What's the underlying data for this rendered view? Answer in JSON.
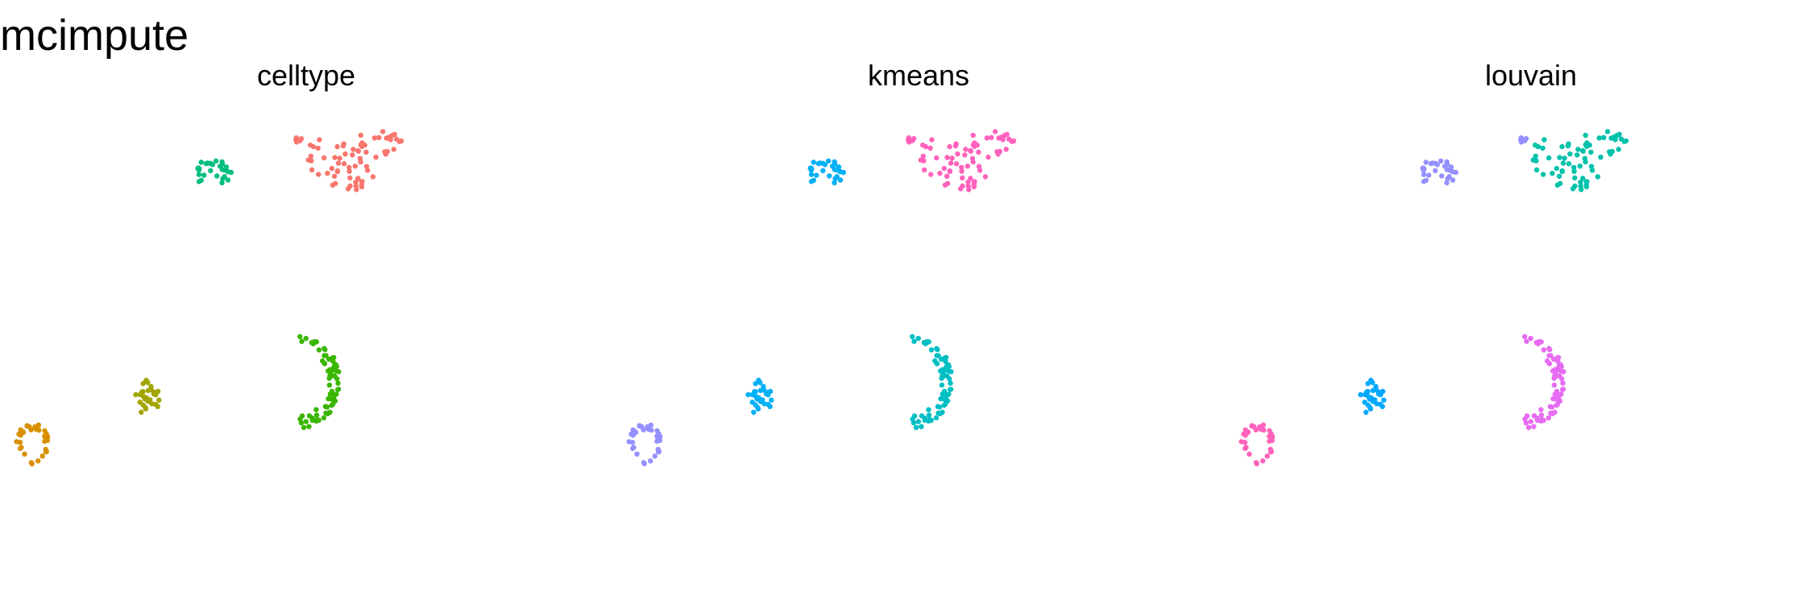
{
  "title": "mcimpute",
  "colors": {
    "c1": "#F8766D",
    "c2": "#DE8C00",
    "c3": "#B79F00",
    "c4": "#7CAE00",
    "c5": "#00BA38",
    "c6": "#00C08B",
    "c7": "#00BFC4",
    "c8": "#00B4F0",
    "c9": "#619CFF",
    "c10": "#C77CFF",
    "c11": "#F564E3",
    "c12": "#FF64B0",
    "c13": "#9E91F0"
  },
  "chart_data": [
    {
      "type": "scatter",
      "title": "celltype",
      "legend": "none",
      "grid": false,
      "xlim": [
        0,
        760
      ],
      "ylim": [
        0,
        686
      ],
      "clusters": [
        {
          "cx": 372,
          "cy": 110,
          "rx": 6,
          "ry": 4,
          "n": 5,
          "shape": "blob",
          "color": "#F8766D"
        },
        {
          "cx": 435,
          "cy": 135,
          "rx": 65,
          "ry": 45,
          "n": 70,
          "shape": "stain",
          "color": "#F8766D"
        },
        {
          "cx": 265,
          "cy": 150,
          "rx": 30,
          "ry": 16,
          "n": 30,
          "shape": "blob",
          "color": "#00BF7D"
        },
        {
          "cx": 390,
          "cy": 410,
          "rx": 30,
          "ry": 55,
          "n": 70,
          "shape": "crescent",
          "color": "#39B600"
        },
        {
          "cx": 183,
          "cy": 430,
          "rx": 15,
          "ry": 22,
          "n": 30,
          "shape": "blob",
          "color": "#A3A500"
        },
        {
          "cx": 40,
          "cy": 485,
          "rx": 20,
          "ry": 22,
          "n": 35,
          "shape": "ring",
          "color": "#D89000"
        }
      ]
    },
    {
      "type": "scatter",
      "title": "kmeans",
      "legend": "none",
      "grid": false,
      "xlim": [
        0,
        760
      ],
      "ylim": [
        0,
        686
      ],
      "clusters": [
        {
          "cx": 372,
          "cy": 110,
          "rx": 6,
          "ry": 4,
          "n": 5,
          "shape": "blob",
          "color": "#FF62BC"
        },
        {
          "cx": 435,
          "cy": 135,
          "rx": 65,
          "ry": 45,
          "n": 70,
          "shape": "stain",
          "color": "#FF62BC"
        },
        {
          "cx": 265,
          "cy": 150,
          "rx": 30,
          "ry": 16,
          "n": 30,
          "shape": "blob",
          "color": "#00B0F6"
        },
        {
          "cx": 390,
          "cy": 410,
          "rx": 30,
          "ry": 55,
          "n": 70,
          "shape": "crescent",
          "color": "#00BFC4"
        },
        {
          "cx": 183,
          "cy": 430,
          "rx": 15,
          "ry": 22,
          "n": 30,
          "shape": "blob",
          "color": "#00B0F6"
        },
        {
          "cx": 40,
          "cy": 485,
          "rx": 20,
          "ry": 22,
          "n": 35,
          "shape": "ring",
          "color": "#9590FF"
        }
      ]
    },
    {
      "type": "scatter",
      "title": "louvain",
      "legend": "none",
      "grid": false,
      "xlim": [
        0,
        760
      ],
      "ylim": [
        0,
        686
      ],
      "clusters": [
        {
          "cx": 372,
          "cy": 110,
          "rx": 6,
          "ry": 4,
          "n": 5,
          "shape": "blob",
          "color": "#9590FF"
        },
        {
          "cx": 435,
          "cy": 135,
          "rx": 65,
          "ry": 45,
          "n": 70,
          "shape": "stain",
          "color": "#00C1AA"
        },
        {
          "cx": 265,
          "cy": 150,
          "rx": 30,
          "ry": 16,
          "n": 30,
          "shape": "blob",
          "color": "#9590FF"
        },
        {
          "cx": 390,
          "cy": 410,
          "rx": 30,
          "ry": 55,
          "n": 70,
          "shape": "crescent",
          "color": "#E76BF3"
        },
        {
          "cx": 183,
          "cy": 430,
          "rx": 15,
          "ry": 22,
          "n": 30,
          "shape": "blob",
          "color": "#00A9FF"
        },
        {
          "cx": 40,
          "cy": 485,
          "rx": 20,
          "ry": 22,
          "n": 35,
          "shape": "ring",
          "color": "#FF62BC"
        }
      ]
    }
  ]
}
